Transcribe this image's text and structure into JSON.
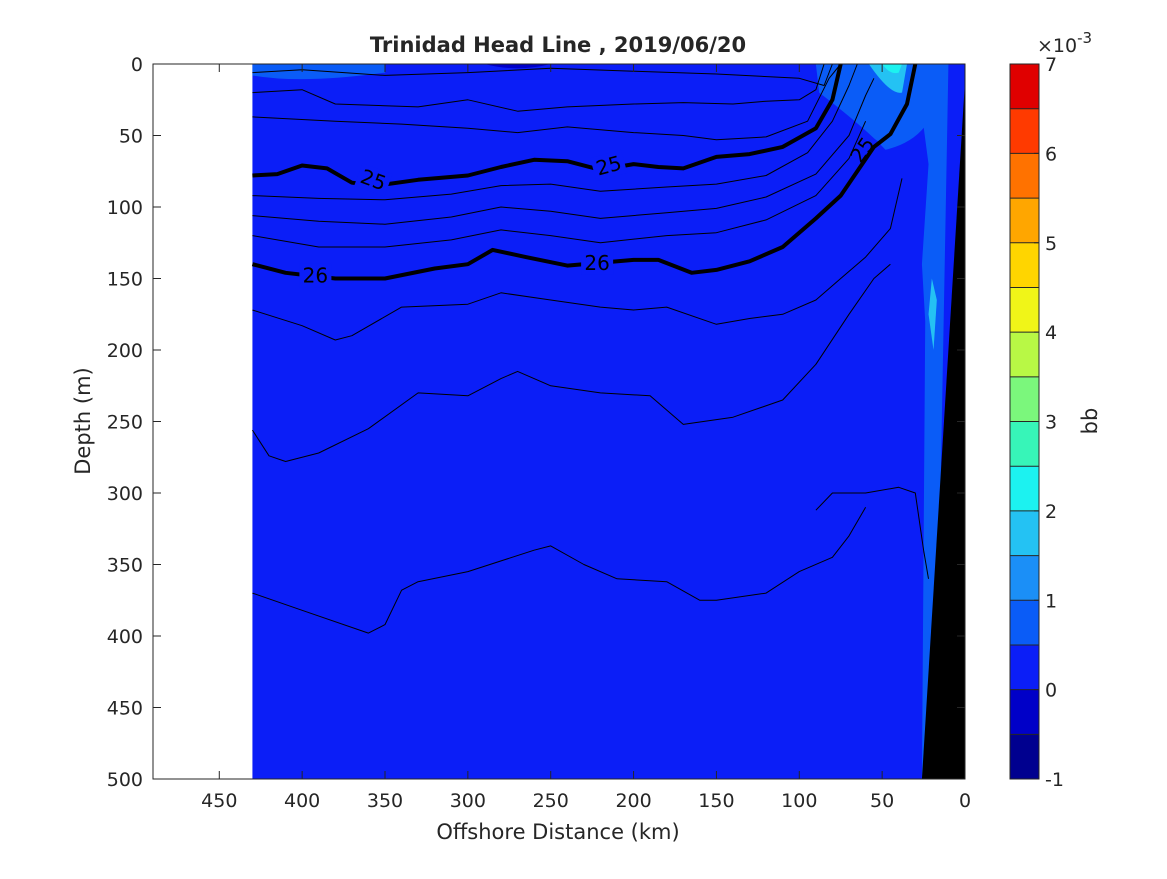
{
  "chart_data": {
    "type": "contour",
    "title": "Trinidad Head Line , 2019/06/20",
    "xlabel": "Offshore Distance (km)",
    "ylabel": "Depth (m)",
    "x_reversed": true,
    "y_reversed": true,
    "xlim": [
      0,
      490
    ],
    "ylim": [
      0,
      500
    ],
    "x_ticks": [
      450,
      400,
      350,
      300,
      250,
      200,
      150,
      100,
      50,
      0
    ],
    "y_ticks": [
      0,
      50,
      100,
      150,
      200,
      250,
      300,
      350,
      400,
      450,
      500
    ],
    "data_extent_x": [
      0,
      430
    ],
    "background_fill_color": "#0b1ef7",
    "colorbar": {
      "label": "bb",
      "exponent_label": "×10",
      "exponent": "-3",
      "range": [
        -1,
        7
      ],
      "ticks": [
        -1,
        0,
        1,
        2,
        3,
        4,
        5,
        6,
        7
      ],
      "levels": [
        -1,
        -0.5,
        0,
        0.5,
        1,
        1.5,
        2,
        2.5,
        3,
        3.5,
        4,
        4.5,
        5,
        5.5,
        6,
        6.5,
        7
      ],
      "colors": [
        "#00008f",
        "#0000c8",
        "#0b1ef7",
        "#0a5cf7",
        "#1b8ff7",
        "#24c2f3",
        "#1cf2f0",
        "#37f5b8",
        "#7bf77c",
        "#b8f845",
        "#f0f518",
        "#ffd500",
        "#ffa600",
        "#ff7200",
        "#ff3a00",
        "#e00000",
        "#a30000"
      ]
    },
    "density_contours": [
      {
        "label": "",
        "bold": false,
        "points": [
          [
            430,
            6
          ],
          [
            400,
            4
          ],
          [
            350,
            8
          ],
          [
            300,
            6
          ],
          [
            250,
            3
          ],
          [
            200,
            5
          ],
          [
            150,
            7
          ],
          [
            100,
            10
          ],
          [
            85,
            15
          ],
          [
            80,
            0
          ]
        ]
      },
      {
        "label": "",
        "bold": false,
        "points": [
          [
            430,
            20
          ],
          [
            400,
            18
          ],
          [
            380,
            28
          ],
          [
            330,
            30
          ],
          [
            300,
            25
          ],
          [
            270,
            33
          ],
          [
            240,
            30
          ],
          [
            200,
            28
          ],
          [
            170,
            27
          ],
          [
            140,
            28
          ],
          [
            120,
            26
          ],
          [
            100,
            25
          ],
          [
            90,
            18
          ],
          [
            85,
            0
          ]
        ]
      },
      {
        "label": "",
        "bold": false,
        "points": [
          [
            430,
            37
          ],
          [
            380,
            40
          ],
          [
            340,
            42
          ],
          [
            300,
            45
          ],
          [
            270,
            48
          ],
          [
            240,
            44
          ],
          [
            200,
            48
          ],
          [
            170,
            50
          ],
          [
            150,
            53
          ],
          [
            120,
            51
          ],
          [
            95,
            40
          ],
          [
            82,
            10
          ],
          [
            75,
            0
          ]
        ]
      },
      {
        "label": "25",
        "bold": true,
        "points": [
          [
            430,
            78
          ],
          [
            415,
            77
          ],
          [
            400,
            71
          ],
          [
            385,
            73
          ],
          [
            370,
            83
          ],
          [
            355,
            85
          ],
          [
            330,
            81
          ],
          [
            300,
            78
          ],
          [
            280,
            72
          ],
          [
            260,
            67
          ],
          [
            240,
            68
          ],
          [
            220,
            74
          ],
          [
            200,
            70
          ],
          [
            185,
            72
          ],
          [
            170,
            73
          ],
          [
            150,
            65
          ],
          [
            130,
            63
          ],
          [
            110,
            58
          ],
          [
            90,
            45
          ],
          [
            80,
            25
          ],
          [
            75,
            0
          ]
        ]
      },
      {
        "label": "",
        "bold": false,
        "points": [
          [
            430,
            92
          ],
          [
            390,
            94
          ],
          [
            350,
            95
          ],
          [
            310,
            91
          ],
          [
            280,
            85
          ],
          [
            250,
            84
          ],
          [
            220,
            89
          ],
          [
            180,
            86
          ],
          [
            150,
            84
          ],
          [
            120,
            78
          ],
          [
            95,
            62
          ],
          [
            80,
            40
          ],
          [
            70,
            15
          ],
          [
            65,
            0
          ]
        ]
      },
      {
        "label": "",
        "bold": false,
        "points": [
          [
            430,
            106
          ],
          [
            390,
            110
          ],
          [
            350,
            112
          ],
          [
            310,
            107
          ],
          [
            280,
            100
          ],
          [
            250,
            103
          ],
          [
            220,
            108
          ],
          [
            180,
            104
          ],
          [
            150,
            101
          ],
          [
            120,
            93
          ],
          [
            90,
            77
          ],
          [
            70,
            50
          ],
          [
            60,
            22
          ],
          [
            55,
            10
          ]
        ]
      },
      {
        "label": "",
        "bold": false,
        "points": [
          [
            430,
            120
          ],
          [
            390,
            128
          ],
          [
            350,
            128
          ],
          [
            310,
            123
          ],
          [
            280,
            116
          ],
          [
            250,
            120
          ],
          [
            220,
            125
          ],
          [
            180,
            120
          ],
          [
            150,
            118
          ],
          [
            120,
            109
          ],
          [
            90,
            92
          ],
          [
            70,
            66
          ],
          [
            60,
            40
          ]
        ]
      },
      {
        "label": "26",
        "bold": true,
        "points": [
          [
            430,
            140
          ],
          [
            410,
            146
          ],
          [
            380,
            150
          ],
          [
            350,
            150
          ],
          [
            320,
            143
          ],
          [
            300,
            140
          ],
          [
            285,
            130
          ],
          [
            265,
            135
          ],
          [
            240,
            141
          ],
          [
            200,
            137
          ],
          [
            185,
            137
          ],
          [
            165,
            146
          ],
          [
            150,
            144
          ],
          [
            130,
            138
          ],
          [
            110,
            128
          ],
          [
            90,
            108
          ],
          [
            75,
            92
          ],
          [
            65,
            75
          ],
          [
            55,
            58
          ],
          [
            45,
            49
          ],
          [
            35,
            28
          ],
          [
            30,
            0
          ]
        ]
      },
      {
        "label": "",
        "bold": false,
        "points": [
          [
            430,
            172
          ],
          [
            400,
            183
          ],
          [
            380,
            193
          ],
          [
            370,
            190
          ],
          [
            340,
            170
          ],
          [
            300,
            168
          ],
          [
            280,
            160
          ],
          [
            250,
            165
          ],
          [
            220,
            170
          ],
          [
            200,
            172
          ],
          [
            180,
            170
          ],
          [
            150,
            182
          ],
          [
            130,
            178
          ],
          [
            110,
            175
          ],
          [
            90,
            165
          ],
          [
            75,
            150
          ],
          [
            60,
            135
          ],
          [
            45,
            115
          ],
          [
            38,
            80
          ]
        ]
      },
      {
        "label": "",
        "bold": false,
        "points": [
          [
            430,
            256
          ],
          [
            420,
            274
          ],
          [
            410,
            278
          ],
          [
            390,
            272
          ],
          [
            360,
            255
          ],
          [
            330,
            230
          ],
          [
            300,
            232
          ],
          [
            280,
            220
          ],
          [
            270,
            215
          ],
          [
            250,
            225
          ],
          [
            220,
            230
          ],
          [
            190,
            232
          ],
          [
            170,
            252
          ],
          [
            140,
            247
          ],
          [
            110,
            235
          ],
          [
            90,
            210
          ],
          [
            70,
            175
          ],
          [
            55,
            150
          ],
          [
            45,
            140
          ]
        ]
      },
      {
        "label": "",
        "bold": false,
        "points": [
          [
            90,
            312
          ],
          [
            80,
            300
          ],
          [
            60,
            300
          ],
          [
            40,
            296
          ],
          [
            30,
            300
          ],
          [
            25,
            340
          ],
          [
            22,
            360
          ]
        ]
      },
      {
        "label": "",
        "bold": false,
        "points": [
          [
            430,
            370
          ],
          [
            400,
            382
          ],
          [
            360,
            398
          ],
          [
            350,
            392
          ],
          [
            340,
            368
          ],
          [
            330,
            362
          ],
          [
            300,
            355
          ],
          [
            260,
            340
          ],
          [
            250,
            337
          ],
          [
            230,
            350
          ],
          [
            210,
            360
          ],
          [
            180,
            362
          ],
          [
            160,
            375
          ],
          [
            150,
            375
          ],
          [
            120,
            370
          ],
          [
            100,
            355
          ],
          [
            80,
            345
          ],
          [
            70,
            330
          ],
          [
            60,
            310
          ]
        ]
      }
    ]
  }
}
